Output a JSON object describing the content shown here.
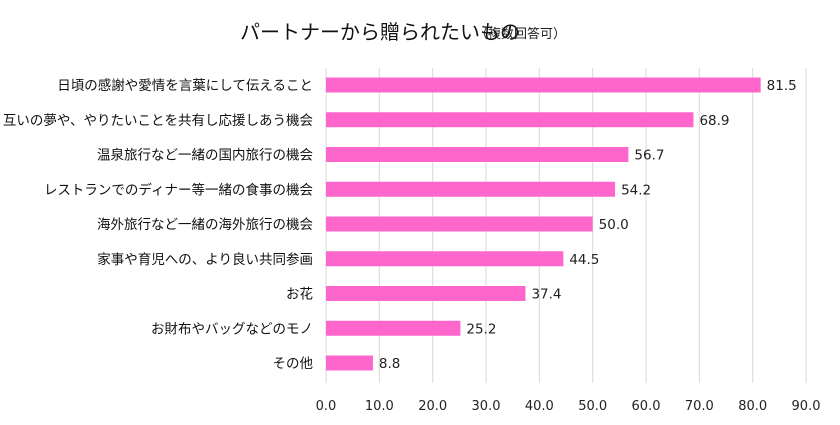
{
  "chart_data": {
    "type": "bar",
    "orientation": "horizontal",
    "title": "パートナーから贈られたいもの",
    "subtitle": "（複数回答可）",
    "categories": [
      "日頃の感謝や愛情を言葉にして伝えること",
      "互いの夢や、やりたいことを共有し応援しあう機会",
      "温泉旅行など一緒の国内旅行の機会",
      "レストランでのディナー等一緒の食事の機会",
      "海外旅行など一緒の海外旅行の機会",
      "家事や育児への、より良い共同参画",
      "お花",
      "お財布やバッグなどのモノ",
      "その他"
    ],
    "values": [
      81.5,
      68.9,
      56.7,
      54.2,
      50.0,
      44.5,
      37.4,
      25.2,
      8.8
    ],
    "value_labels": [
      "81.5",
      "68.9",
      "56.7",
      "54.2",
      "50.0",
      "44.5",
      "37.4",
      "25.2",
      "8.8"
    ],
    "xlim": [
      0,
      90
    ],
    "xticks": [
      "0.0",
      "10.0",
      "20.0",
      "30.0",
      "40.0",
      "50.0",
      "60.0",
      "70.0",
      "80.0",
      "90.0"
    ],
    "xlabel": "",
    "ylabel": "",
    "grid": true,
    "legend": "none",
    "bar_color": "#ff66cc",
    "grid_color": "#d9d9d9"
  }
}
